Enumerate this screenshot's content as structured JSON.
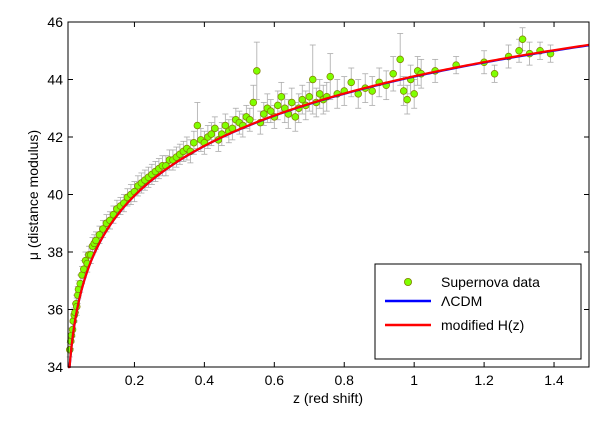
{
  "chart_data": {
    "type": "scatter",
    "title": "",
    "xlabel": "z (red shift)",
    "ylabel": "μ (distance modulus)",
    "xlim": [
      0.01,
      1.5
    ],
    "ylim": [
      34,
      46
    ],
    "xticks": [
      0.2,
      0.4,
      0.6,
      0.8,
      1,
      1.2,
      1.4
    ],
    "xtick_labels": [
      "0.2",
      "0.4",
      "0.6",
      "0.8",
      "1",
      "1.2",
      "1.4"
    ],
    "yticks": [
      34,
      36,
      38,
      40,
      42,
      44,
      46
    ],
    "ytick_labels": [
      "34",
      "36",
      "38",
      "40",
      "42",
      "44",
      "46"
    ],
    "grid": false,
    "legend_position": "bottom-right",
    "series": [
      {
        "name": "Supernova data",
        "kind": "scatter_errorbars",
        "color": "#7fff00",
        "edge_color": "#808000",
        "error_color": "#aaaaaa",
        "points": [
          {
            "x": 0.015,
            "y": 34.6,
            "err": 0.25
          },
          {
            "x": 0.018,
            "y": 34.9,
            "err": 0.25
          },
          {
            "x": 0.02,
            "y": 35.1,
            "err": 0.25
          },
          {
            "x": 0.023,
            "y": 35.3,
            "err": 0.25
          },
          {
            "x": 0.025,
            "y": 35.6,
            "err": 0.25
          },
          {
            "x": 0.028,
            "y": 35.8,
            "err": 0.25
          },
          {
            "x": 0.03,
            "y": 35.9,
            "err": 0.3
          },
          {
            "x": 0.033,
            "y": 36.2,
            "err": 0.3
          },
          {
            "x": 0.035,
            "y": 36.1,
            "err": 0.3
          },
          {
            "x": 0.038,
            "y": 36.5,
            "err": 0.3
          },
          {
            "x": 0.04,
            "y": 36.7,
            "err": 0.3
          },
          {
            "x": 0.045,
            "y": 36.9,
            "err": 0.3
          },
          {
            "x": 0.05,
            "y": 37.2,
            "err": 0.3
          },
          {
            "x": 0.055,
            "y": 37.4,
            "err": 0.3
          },
          {
            "x": 0.06,
            "y": 37.7,
            "err": 0.3
          },
          {
            "x": 0.065,
            "y": 37.6,
            "err": 0.3
          },
          {
            "x": 0.07,
            "y": 37.9,
            "err": 0.3
          },
          {
            "x": 0.075,
            "y": 37.9,
            "err": 0.3
          },
          {
            "x": 0.08,
            "y": 38.2,
            "err": 0.3
          },
          {
            "x": 0.085,
            "y": 38.3,
            "err": 0.3
          },
          {
            "x": 0.09,
            "y": 38.4,
            "err": 0.3
          },
          {
            "x": 0.1,
            "y": 38.6,
            "err": 0.3
          },
          {
            "x": 0.11,
            "y": 38.8,
            "err": 0.3
          },
          {
            "x": 0.12,
            "y": 39.0,
            "err": 0.3
          },
          {
            "x": 0.13,
            "y": 39.1,
            "err": 0.3
          },
          {
            "x": 0.14,
            "y": 39.3,
            "err": 0.3
          },
          {
            "x": 0.15,
            "y": 39.5,
            "err": 0.3
          },
          {
            "x": 0.16,
            "y": 39.6,
            "err": 0.3
          },
          {
            "x": 0.17,
            "y": 39.7,
            "err": 0.3
          },
          {
            "x": 0.18,
            "y": 39.9,
            "err": 0.3
          },
          {
            "x": 0.19,
            "y": 40.0,
            "err": 0.35
          },
          {
            "x": 0.2,
            "y": 40.1,
            "err": 0.35
          },
          {
            "x": 0.21,
            "y": 40.3,
            "err": 0.35
          },
          {
            "x": 0.22,
            "y": 40.4,
            "err": 0.35
          },
          {
            "x": 0.23,
            "y": 40.5,
            "err": 0.35
          },
          {
            "x": 0.24,
            "y": 40.6,
            "err": 0.35
          },
          {
            "x": 0.25,
            "y": 40.7,
            "err": 0.35
          },
          {
            "x": 0.26,
            "y": 40.8,
            "err": 0.35
          },
          {
            "x": 0.27,
            "y": 40.9,
            "err": 0.35
          },
          {
            "x": 0.28,
            "y": 41.0,
            "err": 0.35
          },
          {
            "x": 0.29,
            "y": 41.0,
            "err": 0.35
          },
          {
            "x": 0.3,
            "y": 41.2,
            "err": 0.35
          },
          {
            "x": 0.31,
            "y": 41.2,
            "err": 0.35
          },
          {
            "x": 0.32,
            "y": 41.3,
            "err": 0.35
          },
          {
            "x": 0.33,
            "y": 41.4,
            "err": 0.35
          },
          {
            "x": 0.34,
            "y": 41.5,
            "err": 0.35
          },
          {
            "x": 0.35,
            "y": 41.6,
            "err": 0.4
          },
          {
            "x": 0.36,
            "y": 41.5,
            "err": 0.4
          },
          {
            "x": 0.37,
            "y": 41.8,
            "err": 0.4
          },
          {
            "x": 0.38,
            "y": 42.4,
            "err": 0.8
          },
          {
            "x": 0.39,
            "y": 41.9,
            "err": 0.4
          },
          {
            "x": 0.4,
            "y": 41.8,
            "err": 0.4
          },
          {
            "x": 0.41,
            "y": 42.0,
            "err": 0.4
          },
          {
            "x": 0.42,
            "y": 42.1,
            "err": 0.4
          },
          {
            "x": 0.43,
            "y": 42.3,
            "err": 0.4
          },
          {
            "x": 0.44,
            "y": 41.9,
            "err": 0.4
          },
          {
            "x": 0.45,
            "y": 42.1,
            "err": 0.4
          },
          {
            "x": 0.46,
            "y": 42.4,
            "err": 0.4
          },
          {
            "x": 0.47,
            "y": 42.2,
            "err": 0.4
          },
          {
            "x": 0.48,
            "y": 42.3,
            "err": 0.4
          },
          {
            "x": 0.49,
            "y": 42.6,
            "err": 0.4
          },
          {
            "x": 0.5,
            "y": 42.5,
            "err": 0.4
          },
          {
            "x": 0.51,
            "y": 42.4,
            "err": 0.4
          },
          {
            "x": 0.52,
            "y": 42.7,
            "err": 0.4
          },
          {
            "x": 0.53,
            "y": 42.6,
            "err": 0.4
          },
          {
            "x": 0.54,
            "y": 43.2,
            "err": 0.6
          },
          {
            "x": 0.55,
            "y": 44.3,
            "err": 1.0
          },
          {
            "x": 0.56,
            "y": 42.5,
            "err": 0.4
          },
          {
            "x": 0.57,
            "y": 42.8,
            "err": 0.4
          },
          {
            "x": 0.58,
            "y": 43.0,
            "err": 0.5
          },
          {
            "x": 0.59,
            "y": 42.9,
            "err": 0.4
          },
          {
            "x": 0.6,
            "y": 42.7,
            "err": 0.4
          },
          {
            "x": 0.61,
            "y": 43.1,
            "err": 0.5
          },
          {
            "x": 0.62,
            "y": 43.4,
            "err": 0.5
          },
          {
            "x": 0.63,
            "y": 43.0,
            "err": 0.5
          },
          {
            "x": 0.64,
            "y": 42.8,
            "err": 0.5
          },
          {
            "x": 0.65,
            "y": 43.2,
            "err": 0.5
          },
          {
            "x": 0.66,
            "y": 42.7,
            "err": 0.5
          },
          {
            "x": 0.67,
            "y": 43.0,
            "err": 0.5
          },
          {
            "x": 0.68,
            "y": 43.3,
            "err": 0.5
          },
          {
            "x": 0.69,
            "y": 43.1,
            "err": 0.5
          },
          {
            "x": 0.7,
            "y": 43.4,
            "err": 0.5
          },
          {
            "x": 0.71,
            "y": 44.0,
            "err": 1.2
          },
          {
            "x": 0.72,
            "y": 43.2,
            "err": 0.5
          },
          {
            "x": 0.73,
            "y": 43.5,
            "err": 0.5
          },
          {
            "x": 0.74,
            "y": 43.3,
            "err": 0.5
          },
          {
            "x": 0.75,
            "y": 43.4,
            "err": 0.5
          },
          {
            "x": 0.76,
            "y": 44.1,
            "err": 0.8
          },
          {
            "x": 0.78,
            "y": 43.5,
            "err": 0.5
          },
          {
            "x": 0.8,
            "y": 43.6,
            "err": 0.5
          },
          {
            "x": 0.82,
            "y": 43.9,
            "err": 0.5
          },
          {
            "x": 0.84,
            "y": 43.5,
            "err": 0.5
          },
          {
            "x": 0.86,
            "y": 43.7,
            "err": 0.5
          },
          {
            "x": 0.88,
            "y": 43.6,
            "err": 0.5
          },
          {
            "x": 0.9,
            "y": 43.9,
            "err": 0.5
          },
          {
            "x": 0.92,
            "y": 43.8,
            "err": 0.5
          },
          {
            "x": 0.94,
            "y": 44.2,
            "err": 0.6
          },
          {
            "x": 0.96,
            "y": 44.7,
            "err": 0.9
          },
          {
            "x": 0.97,
            "y": 43.6,
            "err": 0.5
          },
          {
            "x": 0.98,
            "y": 43.3,
            "err": 0.5
          },
          {
            "x": 0.99,
            "y": 44.0,
            "err": 0.5
          },
          {
            "x": 1.0,
            "y": 43.5,
            "err": 0.5
          },
          {
            "x": 1.01,
            "y": 44.3,
            "err": 0.5
          },
          {
            "x": 1.02,
            "y": 44.2,
            "err": 0.5
          },
          {
            "x": 1.06,
            "y": 44.3,
            "err": 0.4
          },
          {
            "x": 1.12,
            "y": 44.5,
            "err": 0.3
          },
          {
            "x": 1.2,
            "y": 44.6,
            "err": 0.4
          },
          {
            "x": 1.23,
            "y": 44.2,
            "err": 0.3
          },
          {
            "x": 1.27,
            "y": 44.8,
            "err": 0.4
          },
          {
            "x": 1.3,
            "y": 45.0,
            "err": 0.4
          },
          {
            "x": 1.31,
            "y": 45.4,
            "err": 0.4
          },
          {
            "x": 1.33,
            "y": 44.9,
            "err": 0.4
          },
          {
            "x": 1.36,
            "y": 45.0,
            "err": 0.3
          },
          {
            "x": 1.39,
            "y": 44.9,
            "err": 0.3
          }
        ]
      },
      {
        "name": "ΛCDM",
        "kind": "model_curve",
        "color": "#0000ff",
        "h": 0.7,
        "omega_m": 0.3,
        "omega_l": 0.7
      },
      {
        "name": "modified H(z)",
        "kind": "model_curve",
        "color": "#ff0000",
        "h": 0.7,
        "omega_m": 0.29,
        "omega_l": 0.71
      }
    ]
  }
}
